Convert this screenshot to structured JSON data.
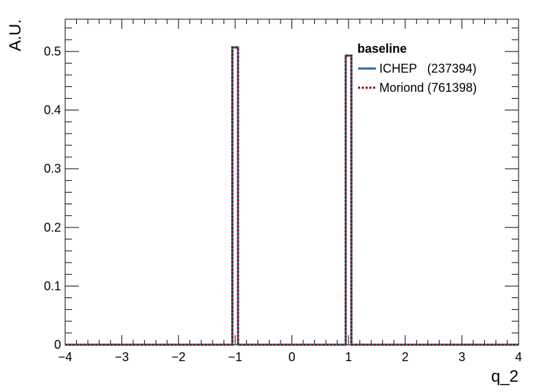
{
  "chart_data": {
    "type": "histogram-step",
    "xlabel": "q_2",
    "ylabel": "A.U.",
    "xlim": [
      -4,
      4
    ],
    "ylim": [
      0,
      0.555
    ],
    "x_ticks": [
      {
        "value": -4,
        "label": "−4"
      },
      {
        "value": -3,
        "label": "−3"
      },
      {
        "value": -2,
        "label": "−2"
      },
      {
        "value": -1,
        "label": "−1"
      },
      {
        "value": 0,
        "label": "0"
      },
      {
        "value": 1,
        "label": "1"
      },
      {
        "value": 2,
        "label": "2"
      },
      {
        "value": 3,
        "label": "3"
      },
      {
        "value": 4,
        "label": "4"
      }
    ],
    "y_ticks": [
      {
        "value": 0,
        "label": "0"
      },
      {
        "value": 0.1,
        "label": "0.1"
      },
      {
        "value": 0.2,
        "label": "0.2"
      },
      {
        "value": 0.3,
        "label": "0.3"
      },
      {
        "value": 0.4,
        "label": "0.4"
      },
      {
        "value": 0.5,
        "label": "0.5"
      }
    ],
    "bin_width": 0.1,
    "legend": {
      "header": "baseline",
      "placement": "top-right",
      "entries": [
        {
          "label": "ICHEP   (237394)",
          "color": "#2b6a99",
          "style": "solid"
        },
        {
          "label": "Moriond (761398)",
          "color": "#7a0a0a",
          "style": "dotted"
        }
      ]
    },
    "series": [
      {
        "name": "ICHEP",
        "color": "#2b6a99",
        "style": "solid",
        "bins": [
          {
            "center": -1.0,
            "value": 0.507
          },
          {
            "center": 1.0,
            "value": 0.493
          }
        ]
      },
      {
        "name": "Moriond",
        "color": "#7a0a0a",
        "style": "dotted",
        "bins": [
          {
            "center": -1.0,
            "value": 0.507
          },
          {
            "center": 1.0,
            "value": 0.493
          }
        ]
      }
    ]
  }
}
